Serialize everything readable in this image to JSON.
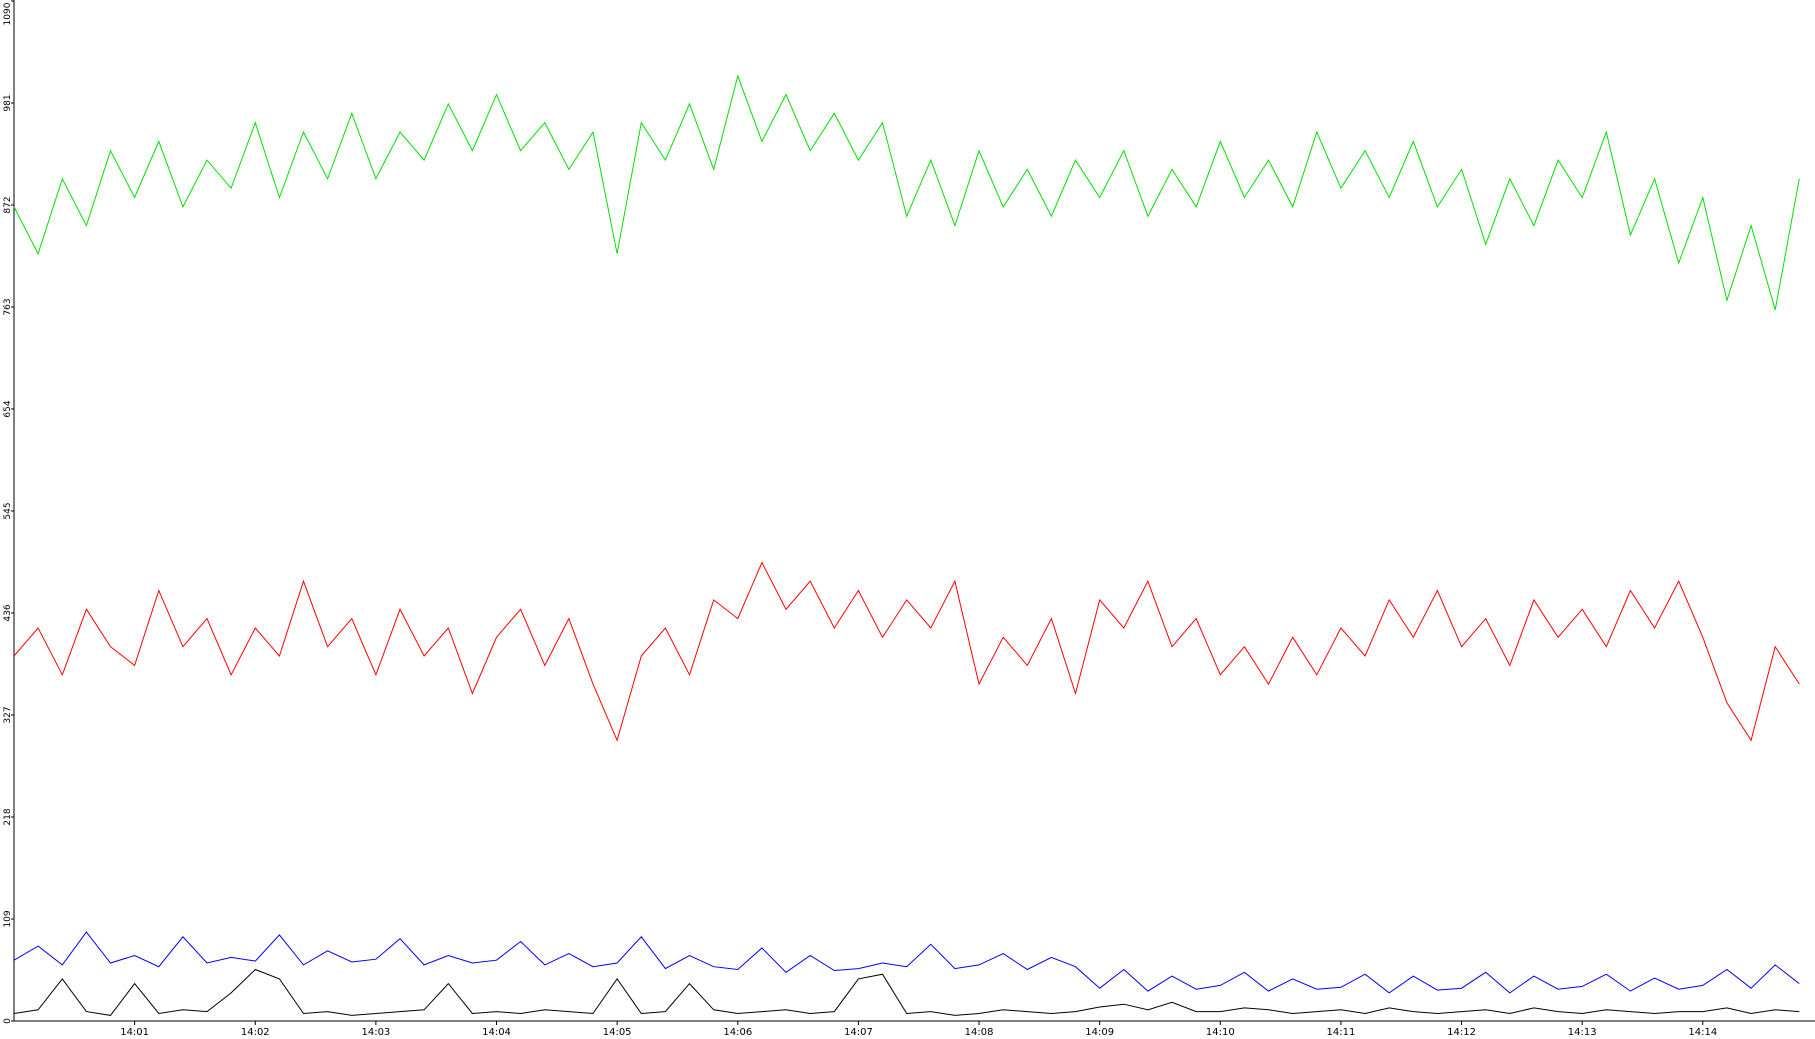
{
  "chart_data": {
    "type": "line",
    "x": [
      0,
      0.2,
      0.4,
      0.6,
      0.8,
      1,
      1.2,
      1.4,
      1.6,
      1.8,
      2,
      2.2,
      2.4,
      2.6,
      2.8,
      3,
      3.2,
      3.4,
      3.6,
      3.8,
      4,
      4.2,
      4.4,
      4.6,
      4.8,
      5,
      5.2,
      5.4,
      5.6,
      5.8,
      6,
      6.2,
      6.4,
      6.6,
      6.8,
      7,
      7.2,
      7.4,
      7.6,
      7.8,
      8,
      8.2,
      8.4,
      8.6,
      8.8,
      9,
      9.2,
      9.4,
      9.6,
      9.8,
      10,
      10.2,
      10.4,
      10.6,
      10.8,
      11,
      11.2,
      11.4,
      11.6,
      11.8,
      12,
      12.2,
      12.4,
      12.6,
      12.8,
      13,
      13.2,
      13.4,
      13.6,
      13.8,
      14,
      14.2,
      14.4,
      14.6,
      14.8
    ],
    "series": [
      {
        "color": "#00e000",
        "values": [
          870,
          820,
          900,
          850,
          930,
          880,
          940,
          870,
          920,
          890,
          960,
          880,
          950,
          900,
          970,
          900,
          950,
          920,
          980,
          930,
          990,
          930,
          960,
          910,
          950,
          820,
          960,
          920,
          980,
          910,
          1010,
          940,
          990,
          930,
          970,
          920,
          960,
          860,
          920,
          850,
          930,
          870,
          910,
          860,
          920,
          880,
          930,
          860,
          910,
          870,
          940,
          880,
          920,
          870,
          950,
          890,
          930,
          880,
          940,
          870,
          910,
          830,
          900,
          850,
          920,
          880,
          950,
          840,
          900,
          810,
          880,
          770,
          850,
          760,
          900
        ]
      },
      {
        "color": "#ff0000",
        "values": [
          390,
          420,
          370,
          440,
          400,
          380,
          460,
          400,
          430,
          370,
          420,
          390,
          470,
          400,
          430,
          370,
          440,
          390,
          420,
          350,
          410,
          440,
          380,
          430,
          360,
          300,
          390,
          420,
          370,
          450,
          430,
          490,
          440,
          470,
          420,
          460,
          410,
          450,
          420,
          470,
          360,
          410,
          380,
          430,
          350,
          450,
          420,
          470,
          400,
          430,
          370,
          400,
          360,
          410,
          370,
          420,
          390,
          450,
          410,
          460,
          400,
          430,
          380,
          450,
          410,
          440,
          400,
          460,
          420,
          470,
          410,
          340,
          300,
          400,
          360
        ]
      },
      {
        "color": "#0000ff",
        "values": [
          65,
          80,
          60,
          95,
          62,
          70,
          58,
          90,
          62,
          68,
          64,
          92,
          60,
          75,
          63,
          66,
          88,
          60,
          70,
          62,
          65,
          85,
          60,
          72,
          58,
          62,
          90,
          56,
          70,
          58,
          55,
          78,
          52,
          70,
          54,
          56,
          62,
          58,
          82,
          56,
          60,
          72,
          55,
          68,
          58,
          35,
          55,
          32,
          48,
          34,
          38,
          52,
          32,
          45,
          34,
          36,
          50,
          30,
          48,
          33,
          35,
          52,
          30,
          48,
          34,
          37,
          50,
          32,
          46,
          34,
          38,
          55,
          35,
          60,
          40
        ]
      },
      {
        "color": "#000000",
        "values": [
          8,
          12,
          45,
          10,
          6,
          40,
          8,
          12,
          10,
          30,
          55,
          45,
          8,
          10,
          6,
          8,
          10,
          12,
          40,
          8,
          10,
          8,
          12,
          10,
          8,
          45,
          8,
          10,
          40,
          12,
          8,
          10,
          12,
          8,
          10,
          45,
          50,
          8,
          10,
          6,
          8,
          12,
          10,
          8,
          10,
          15,
          18,
          12,
          20,
          10,
          10,
          14,
          12,
          8,
          10,
          12,
          8,
          14,
          10,
          8,
          10,
          12,
          8,
          14,
          10,
          8,
          12,
          10,
          8,
          10,
          10,
          14,
          8,
          12,
          10
        ]
      }
    ],
    "xlim": [
      0,
      14.93
    ],
    "xticks": [
      {
        "value": 1,
        "label": "14:01"
      },
      {
        "value": 2,
        "label": "14:02"
      },
      {
        "value": 3,
        "label": "14:03"
      },
      {
        "value": 4,
        "label": "14:04"
      },
      {
        "value": 5,
        "label": "14:05"
      },
      {
        "value": 6,
        "label": "14:06"
      },
      {
        "value": 7,
        "label": "14:07"
      },
      {
        "value": 8,
        "label": "14:08"
      },
      {
        "value": 9,
        "label": "14:09"
      },
      {
        "value": 10,
        "label": "14:10"
      },
      {
        "value": 11,
        "label": "14:11"
      },
      {
        "value": 12,
        "label": "14:12"
      },
      {
        "value": 13,
        "label": "14:13"
      },
      {
        "value": 14,
        "label": "14:14"
      }
    ],
    "ylim": [
      0,
      1090
    ],
    "yticks": [
      0,
      109,
      218,
      327,
      436,
      545,
      654,
      763,
      872,
      981,
      1090
    ]
  }
}
